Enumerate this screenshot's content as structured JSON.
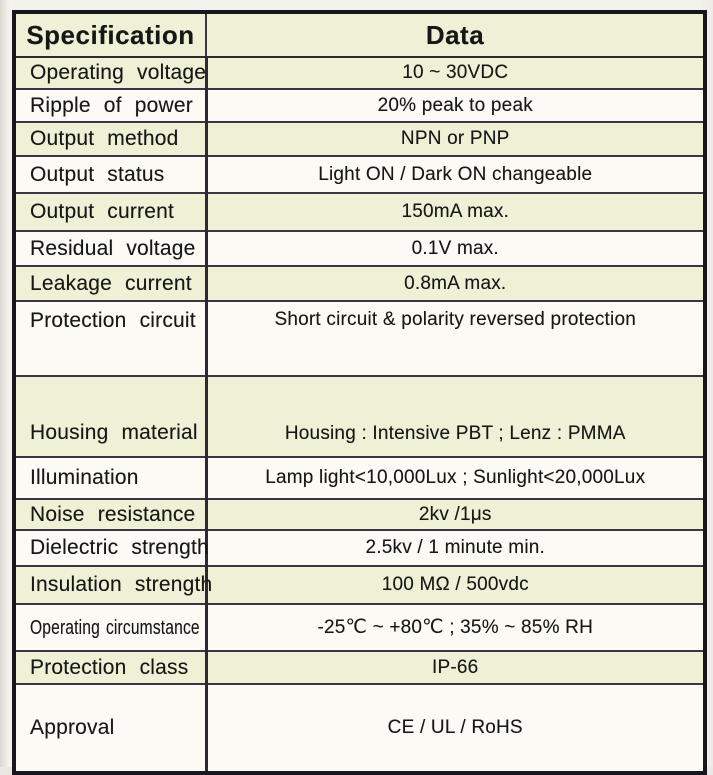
{
  "table": {
    "headers": {
      "specification": "Specification",
      "data": "Data"
    },
    "rows": [
      {
        "label": "Operating voltage",
        "value": "10 ~ 30VDC"
      },
      {
        "label": "Ripple of power",
        "value": "20% peak to peak"
      },
      {
        "label": "Output method",
        "value": "NPN or PNP"
      },
      {
        "label": "Output status",
        "value": "Light ON / Dark ON changeable"
      },
      {
        "label": "Output current",
        "value": "150mA max."
      },
      {
        "label": "Residual voltage",
        "value": "0.1V max."
      },
      {
        "label": "Leakage current",
        "value": "0.8mA max."
      },
      {
        "label": "Protection circuit",
        "value": "Short circuit & polarity reversed protection"
      },
      {
        "label": "Housing material",
        "value": "Housing : Intensive PBT ; Lenz : PMMA"
      },
      {
        "label": "Illumination",
        "value": "Lamp light<10,000Lux ; Sunlight<20,000Lux"
      },
      {
        "label": "Noise resistance",
        "value": "2kv /1μs"
      },
      {
        "label": "Dielectric strength",
        "value": "2.5kv / 1 minute min."
      },
      {
        "label": "Insulation strength",
        "value": "100 MΩ / 500vdc"
      },
      {
        "label": "Operating circumstance",
        "value": "-25℃ ~ +80℃ ; 35% ~ 85% RH"
      },
      {
        "label": "Protection class",
        "value": "IP-66"
      },
      {
        "label": "Approval",
        "value": "CE / UL / RoHS"
      }
    ],
    "colors": {
      "row_tint": "#eef1d5",
      "row_plain": "#fbfaf5",
      "border": "#2c2935",
      "text": "#171717"
    }
  }
}
